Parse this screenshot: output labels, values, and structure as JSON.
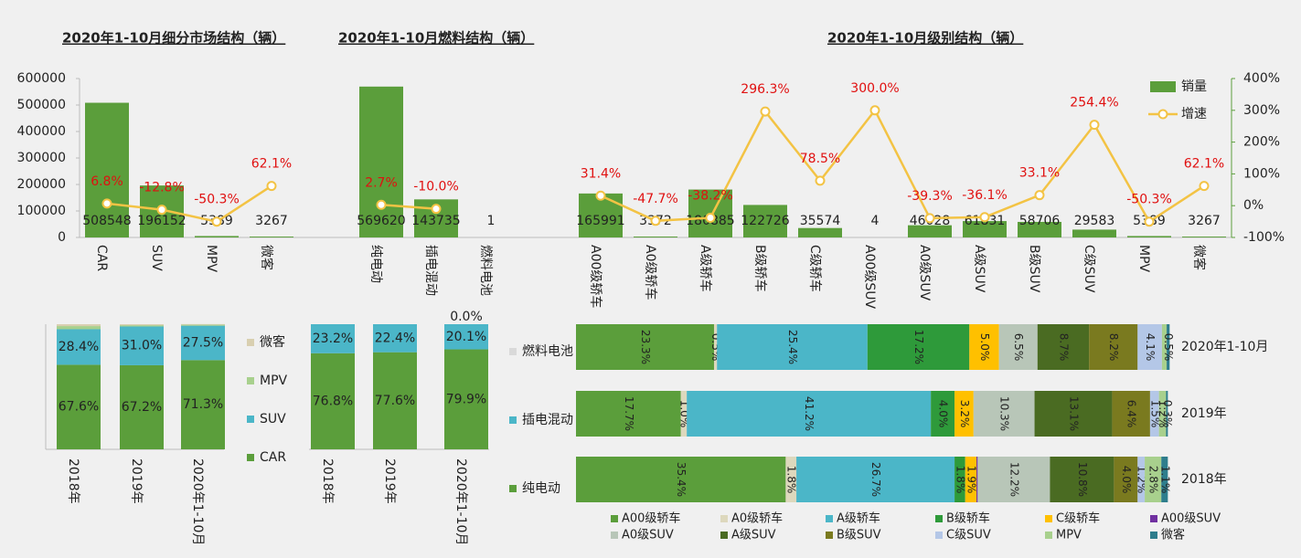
{
  "chart_data": [
    {
      "type": "combo",
      "series": [
        {
          "name": "销量",
          "color": "#5b9e3b"
        },
        {
          "name": "增速",
          "color": "#f3c344",
          "axis": "y2"
        }
      ],
      "panels": [
        {
          "title": "2020年1-10月细分市场结构（辆）",
          "categories": [
            "CAR",
            "SUV",
            "MPV",
            "微客"
          ],
          "values": [
            508548,
            196152,
            5389,
            3267
          ],
          "growth": [
            6.8,
            -12.8,
            -50.3,
            62.1
          ],
          "growth_labels": [
            "6.8%",
            "-12.8%",
            "-50.3%",
            "62.1%"
          ]
        },
        {
          "title": "2020年1-10月燃料结构（辆）",
          "categories": [
            "纯电动",
            "插电混动",
            "燃料电池"
          ],
          "values": [
            569620,
            143735,
            1
          ],
          "growth": [
            2.7,
            -10.0,
            null
          ],
          "growth_labels": [
            "2.7%",
            "-10.0%",
            null
          ]
        },
        {
          "title": "2020年1-10月级别结构（辆）",
          "categories": [
            "A00级轿车",
            "A0级轿车",
            "A级轿车",
            "B级轿车",
            "C级轿车",
            "A00级SUV",
            "A0级SUV",
            "A级SUV",
            "B级SUV",
            "C级SUV",
            "MPV",
            "微客"
          ],
          "values": [
            165991,
            3372,
            180885,
            122726,
            35574,
            4,
            46028,
            61831,
            58706,
            29583,
            5389,
            3267
          ],
          "growth": [
            31.4,
            -47.7,
            -38.2,
            296.3,
            78.5,
            300.0,
            -39.3,
            -36.1,
            33.1,
            254.4,
            -50.3,
            62.1
          ],
          "growth_labels": [
            "31.4%",
            "-47.7%",
            "-38.2%",
            "296.3%",
            "78.5%",
            "300.0%",
            "-39.3%",
            "-36.1%",
            "33.1%",
            "254.4%",
            "-50.3%",
            "62.1%"
          ]
        }
      ],
      "ylim": [
        0,
        600000
      ],
      "yticks": [
        0,
        100000,
        200000,
        300000,
        400000,
        500000,
        600000
      ],
      "y2lim": [
        -100,
        400
      ],
      "y2ticks": [
        {
          "value": -100,
          "label": "-100%"
        },
        {
          "value": 0,
          "label": "0%"
        },
        {
          "value": 100,
          "label": "100%"
        },
        {
          "value": 200,
          "label": "200%"
        },
        {
          "value": 300,
          "label": "300%"
        },
        {
          "value": 400,
          "label": "400%"
        }
      ]
    },
    {
      "type": "stacked_bar",
      "categories": [
        "2018年",
        "2019年",
        "2020年1-10月"
      ],
      "ylim": [
        0,
        100
      ],
      "series": [
        {
          "name": "CAR",
          "color": "#5b9e3b",
          "values": [
            67.6,
            67.2,
            71.3
          ],
          "value_labels": [
            "67.6%",
            "67.2%",
            "71.3%"
          ]
        },
        {
          "name": "SUV",
          "color": "#4bb6c8",
          "values": [
            28.4,
            31.0,
            27.5
          ],
          "value_labels": [
            "28.4%",
            "31.0%",
            "27.5%"
          ]
        },
        {
          "name": "MPV",
          "color": "#a8d08d",
          "values": [
            2.5,
            1.0,
            0.8
          ],
          "value_labels": [
            null,
            null,
            null
          ]
        },
        {
          "name": "微客",
          "color": "#d9cfb0",
          "values": [
            1.5,
            0.8,
            0.5
          ],
          "value_labels": [
            null,
            null,
            null
          ]
        }
      ]
    },
    {
      "type": "stacked_bar",
      "categories": [
        "2018年",
        "2019年",
        "2020年1-10月"
      ],
      "ylim": [
        0,
        100
      ],
      "series": [
        {
          "name": "纯电动",
          "color": "#5b9e3b",
          "values": [
            76.8,
            77.6,
            79.9
          ],
          "value_labels": [
            "76.8%",
            "77.6%",
            "79.9%"
          ]
        },
        {
          "name": "插电混动",
          "color": "#4bb6c8",
          "values": [
            23.2,
            22.4,
            20.1
          ],
          "value_labels": [
            "23.2%",
            "22.4%",
            "20.1%"
          ]
        },
        {
          "name": "燃料电池",
          "color": "#d9d9d9",
          "values": [
            0,
            0,
            0.0
          ],
          "value_labels": [
            null,
            null,
            "0.0%"
          ]
        }
      ]
    },
    {
      "type": "stacked_barh",
      "categories": [
        "2020年1-10月",
        "2019年",
        "2018年"
      ],
      "xlim": [
        0,
        100
      ],
      "series": [
        {
          "name": "A00级轿车",
          "color": "#5b9e3b",
          "values": [
            23.3,
            17.7,
            35.4
          ],
          "value_labels": [
            "23.3%",
            "17.7%",
            "35.4%"
          ]
        },
        {
          "name": "A0级轿车",
          "color": "#ddd8bd",
          "values": [
            0.5,
            1.0,
            1.8
          ],
          "value_labels": [
            "0.5%",
            "1.0%",
            "1.8%"
          ]
        },
        {
          "name": "A级轿车",
          "color": "#4bb6c8",
          "values": [
            25.4,
            41.2,
            26.7
          ],
          "value_labels": [
            "25.4%",
            "41.2%",
            "26.7%"
          ]
        },
        {
          "name": "B级轿车",
          "color": "#2e9a3a",
          "values": [
            17.2,
            4.0,
            1.8
          ],
          "value_labels": [
            "17.2%",
            "4.0%",
            "1.8%"
          ]
        },
        {
          "name": "C级轿车",
          "color": "#ffc000",
          "values": [
            5.0,
            3.2,
            1.9
          ],
          "value_labels": [
            "5.0%",
            "3.2%",
            "1.9%"
          ]
        },
        {
          "name": "A00级SUV",
          "color": "#7030a0",
          "values": [
            0,
            0,
            0.2
          ],
          "value_labels": [
            null,
            null,
            null
          ]
        },
        {
          "name": "A0级SUV",
          "color": "#b8c6b8",
          "values": [
            6.5,
            10.3,
            12.2
          ],
          "value_labels": [
            "6.5%",
            "10.3%",
            "12.2%"
          ]
        },
        {
          "name": "A级SUV",
          "color": "#4a6b22",
          "values": [
            8.7,
            13.1,
            10.8
          ],
          "value_labels": [
            "8.7%",
            "13.1%",
            "10.8%"
          ]
        },
        {
          "name": "B级SUV",
          "color": "#7a7a1f",
          "values": [
            8.2,
            6.4,
            4.0
          ],
          "value_labels": [
            "8.2%",
            "6.4%",
            "4.0%"
          ]
        },
        {
          "name": "C级SUV",
          "color": "#b4c7e7",
          "values": [
            4.1,
            1.5,
            1.2
          ],
          "value_labels": [
            "4.1%",
            "1.5%",
            "1.2%"
          ]
        },
        {
          "name": "MPV",
          "color": "#a8d08d",
          "values": [
            0.8,
            1.2,
            2.8
          ],
          "value_labels": [
            null,
            "1.2%",
            "2.8%"
          ]
        },
        {
          "name": "微客",
          "color": "#2e7d8c",
          "values": [
            0.5,
            0.3,
            1.1
          ],
          "value_labels": [
            "0.5%",
            "0.3%",
            "1.1%"
          ]
        }
      ]
    }
  ]
}
